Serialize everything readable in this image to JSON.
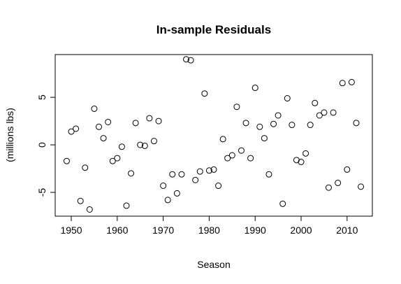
{
  "chart_data": {
    "type": "scatter",
    "title": "In-sample Residuals",
    "xlabel": "Season",
    "ylabel": "(millions lbs)",
    "xlim": [
      1946.5,
      2015.5
    ],
    "ylim": [
      -7.5,
      9.5
    ],
    "xticks": [
      1950,
      1960,
      1970,
      1980,
      1990,
      2000,
      2010
    ],
    "yticks": [
      -5,
      0,
      5
    ],
    "grid": false,
    "legend": "none",
    "marker": "open-circle",
    "points": [
      {
        "x": 1949,
        "y": -1.7
      },
      {
        "x": 1950,
        "y": 1.4
      },
      {
        "x": 1951,
        "y": 1.7
      },
      {
        "x": 1952,
        "y": -5.9
      },
      {
        "x": 1953,
        "y": -2.4
      },
      {
        "x": 1954,
        "y": -6.8
      },
      {
        "x": 1955,
        "y": 3.8
      },
      {
        "x": 1956,
        "y": 1.9
      },
      {
        "x": 1957,
        "y": 0.7
      },
      {
        "x": 1958,
        "y": 2.4
      },
      {
        "x": 1959,
        "y": -1.7
      },
      {
        "x": 1960,
        "y": -1.4
      },
      {
        "x": 1961,
        "y": -0.2
      },
      {
        "x": 1962,
        "y": -6.4
      },
      {
        "x": 1963,
        "y": -3.0
      },
      {
        "x": 1964,
        "y": 2.3
      },
      {
        "x": 1965,
        "y": 0.0
      },
      {
        "x": 1966,
        "y": -0.1
      },
      {
        "x": 1967,
        "y": 2.8
      },
      {
        "x": 1968,
        "y": 0.4
      },
      {
        "x": 1969,
        "y": 2.5
      },
      {
        "x": 1970,
        "y": -4.3
      },
      {
        "x": 1971,
        "y": -5.8
      },
      {
        "x": 1972,
        "y": -3.1
      },
      {
        "x": 1973,
        "y": -5.1
      },
      {
        "x": 1974,
        "y": -3.1
      },
      {
        "x": 1975,
        "y": 9.0
      },
      {
        "x": 1976,
        "y": 8.9
      },
      {
        "x": 1977,
        "y": -3.7
      },
      {
        "x": 1978,
        "y": -2.8
      },
      {
        "x": 1979,
        "y": 5.4
      },
      {
        "x": 1980,
        "y": -2.7
      },
      {
        "x": 1981,
        "y": -2.6
      },
      {
        "x": 1982,
        "y": -4.3
      },
      {
        "x": 1983,
        "y": 0.6
      },
      {
        "x": 1984,
        "y": -1.4
      },
      {
        "x": 1985,
        "y": -1.1
      },
      {
        "x": 1986,
        "y": 4.0
      },
      {
        "x": 1987,
        "y": -0.6
      },
      {
        "x": 1988,
        "y": 2.3
      },
      {
        "x": 1989,
        "y": -1.4
      },
      {
        "x": 1990,
        "y": 6.0
      },
      {
        "x": 1991,
        "y": 1.9
      },
      {
        "x": 1992,
        "y": 0.7
      },
      {
        "x": 1993,
        "y": -3.1
      },
      {
        "x": 1994,
        "y": 2.2
      },
      {
        "x": 1995,
        "y": 3.1
      },
      {
        "x": 1996,
        "y": -6.2
      },
      {
        "x": 1997,
        "y": 4.9
      },
      {
        "x": 1998,
        "y": 2.1
      },
      {
        "x": 1999,
        "y": -1.6
      },
      {
        "x": 2000,
        "y": -1.8
      },
      {
        "x": 2001,
        "y": -0.9
      },
      {
        "x": 2002,
        "y": 2.1
      },
      {
        "x": 2003,
        "y": 4.4
      },
      {
        "x": 2004,
        "y": 3.1
      },
      {
        "x": 2005,
        "y": 3.4
      },
      {
        "x": 2006,
        "y": -4.5
      },
      {
        "x": 2007,
        "y": 3.4
      },
      {
        "x": 2008,
        "y": -4.0
      },
      {
        "x": 2009,
        "y": 6.5
      },
      {
        "x": 2010,
        "y": -2.6
      },
      {
        "x": 2011,
        "y": 6.6
      },
      {
        "x": 2012,
        "y": 2.3
      },
      {
        "x": 2013,
        "y": -4.4
      }
    ]
  }
}
